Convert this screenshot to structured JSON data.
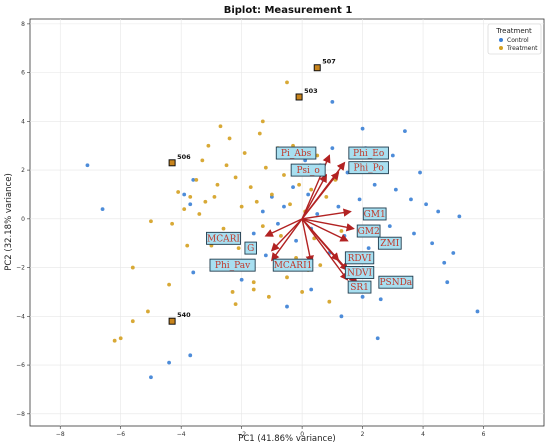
{
  "chart_data": {
    "type": "scatter",
    "title": "Biplot: Measurement 1",
    "xlabel": "PC1 (41.86% variance)",
    "ylabel": "PC2 (32.18% variance)",
    "xlim": [
      -9,
      8
    ],
    "ylim": [
      -8.5,
      8.2
    ],
    "x_ticks": [
      -8,
      -6,
      -4,
      -2,
      0,
      2,
      4,
      6
    ],
    "y_ticks": [
      -8,
      -6,
      -4,
      -2,
      0,
      2,
      4,
      6,
      8
    ],
    "x_tick_labels": [
      "−8",
      "−6",
      "−4",
      "−2",
      "0",
      "2",
      "4",
      "6"
    ],
    "y_tick_labels": [
      "−8",
      "−6",
      "−4",
      "−2",
      "0",
      "2",
      "4",
      "6",
      "8"
    ],
    "grid": true,
    "legend_title": "Treatment",
    "legend_position": "top-right",
    "series": [
      {
        "name": "Control",
        "color": "#3a7fd5",
        "points": [
          [
            -7.1,
            2.2
          ],
          [
            -6.6,
            0.4
          ],
          [
            -5.0,
            -6.5
          ],
          [
            -4.4,
            -5.9
          ],
          [
            -3.7,
            -5.6
          ],
          [
            -3.6,
            -2.2
          ],
          [
            -3.7,
            0.6
          ],
          [
            -3.9,
            1.0
          ],
          [
            -3.6,
            1.6
          ],
          [
            -2.0,
            -2.5
          ],
          [
            -1.6,
            -0.6
          ],
          [
            -1.3,
            0.3
          ],
          [
            -1.2,
            -1.5
          ],
          [
            -1.0,
            0.9
          ],
          [
            -0.8,
            -0.2
          ],
          [
            -0.6,
            0.5
          ],
          [
            -0.3,
            1.3
          ],
          [
            -0.2,
            -0.9
          ],
          [
            0.1,
            2.4
          ],
          [
            0.2,
            1.0
          ],
          [
            0.3,
            -0.4
          ],
          [
            0.5,
            0.2
          ],
          [
            0.7,
            1.6
          ],
          [
            0.9,
            -1.4
          ],
          [
            1.0,
            2.9
          ],
          [
            1.2,
            0.5
          ],
          [
            1.4,
            -0.7
          ],
          [
            1.5,
            1.9
          ],
          [
            1.7,
            -2.3
          ],
          [
            1.9,
            0.8
          ],
          [
            2.0,
            3.7
          ],
          [
            2.1,
            2.9
          ],
          [
            2.2,
            -1.2
          ],
          [
            2.4,
            1.4
          ],
          [
            2.6,
            -3.3
          ],
          [
            2.7,
            0.2
          ],
          [
            2.9,
            -0.3
          ],
          [
            3.0,
            2.6
          ],
          [
            3.1,
            1.2
          ],
          [
            3.2,
            -2.6
          ],
          [
            3.4,
            3.6
          ],
          [
            3.6,
            0.8
          ],
          [
            3.7,
            -0.6
          ],
          [
            3.9,
            1.9
          ],
          [
            4.1,
            0.6
          ],
          [
            4.3,
            -1.0
          ],
          [
            4.5,
            0.3
          ],
          [
            4.7,
            -1.8
          ],
          [
            4.8,
            -2.6
          ],
          [
            5.0,
            -1.4
          ],
          [
            5.2,
            0.1
          ],
          [
            5.8,
            -3.8
          ],
          [
            1.0,
            4.8
          ],
          [
            0.6,
            2.2
          ],
          [
            2.5,
            -4.9
          ],
          [
            0.3,
            -2.9
          ],
          [
            1.3,
            -4.0
          ],
          [
            2.0,
            -3.2
          ],
          [
            -0.5,
            -3.6
          ]
        ]
      },
      {
        "name": "Treatment",
        "color": "#d4a020",
        "points": [
          [
            -6.0,
            -4.9
          ],
          [
            -5.6,
            -4.2
          ],
          [
            -5.6,
            -2.0
          ],
          [
            -5.1,
            -3.8
          ],
          [
            -5.0,
            -0.1
          ],
          [
            -4.4,
            -2.7
          ],
          [
            -4.3,
            -0.2
          ],
          [
            -4.1,
            1.1
          ],
          [
            -3.9,
            0.4
          ],
          [
            -3.8,
            -1.1
          ],
          [
            -3.7,
            0.9
          ],
          [
            -3.5,
            1.6
          ],
          [
            -3.4,
            0.2
          ],
          [
            -3.3,
            2.4
          ],
          [
            -3.2,
            0.7
          ],
          [
            -3.1,
            3.0
          ],
          [
            -3.0,
            -1.1
          ],
          [
            -2.9,
            0.9
          ],
          [
            -2.8,
            1.4
          ],
          [
            -2.7,
            3.8
          ],
          [
            -2.6,
            -0.4
          ],
          [
            -2.5,
            2.2
          ],
          [
            -2.4,
            3.3
          ],
          [
            -2.3,
            -3.0
          ],
          [
            -2.2,
            1.7
          ],
          [
            -2.1,
            -1.2
          ],
          [
            -2.0,
            0.5
          ],
          [
            -1.9,
            2.7
          ],
          [
            -1.8,
            -1.8
          ],
          [
            -1.7,
            1.3
          ],
          [
            -1.6,
            -2.6
          ],
          [
            -1.5,
            0.7
          ],
          [
            -1.4,
            3.5
          ],
          [
            -1.3,
            -0.3
          ],
          [
            -1.2,
            2.1
          ],
          [
            -1.1,
            -3.2
          ],
          [
            -1.0,
            1.0
          ],
          [
            -0.9,
            -2.0
          ],
          [
            -0.8,
            2.9
          ],
          [
            -0.7,
            -0.7
          ],
          [
            -0.6,
            1.8
          ],
          [
            -0.5,
            -2.4
          ],
          [
            -0.4,
            0.6
          ],
          [
            -0.3,
            3.0
          ],
          [
            -0.2,
            -1.6
          ],
          [
            -0.1,
            1.4
          ],
          [
            0.0,
            -3.0
          ],
          [
            0.1,
            0.3
          ],
          [
            0.2,
            -2.1
          ],
          [
            0.3,
            1.2
          ],
          [
            0.4,
            -0.8
          ],
          [
            0.5,
            2.6
          ],
          [
            0.6,
            -1.9
          ],
          [
            0.8,
            0.9
          ],
          [
            0.9,
            -3.4
          ],
          [
            1.1,
            1.6
          ],
          [
            1.3,
            -0.5
          ],
          [
            1.6,
            -1.7
          ],
          [
            -0.5,
            5.6
          ],
          [
            -1.3,
            4.0
          ],
          [
            -6.2,
            -5.0
          ],
          [
            -2.2,
            -3.5
          ],
          [
            -1.6,
            -2.9
          ]
        ]
      }
    ],
    "outliers": [
      {
        "label": "507",
        "x": 0.5,
        "y": 6.2
      },
      {
        "label": "503",
        "x": -0.1,
        "y": 5.0
      },
      {
        "label": "506",
        "x": -4.3,
        "y": 2.3
      },
      {
        "label": "540",
        "x": -4.3,
        "y": -4.2
      }
    ],
    "loadings": [
      {
        "label": "Pi_Abs",
        "x": 0.9,
        "y": 2.6
      },
      {
        "label": "Phi_Eo",
        "x": 1.4,
        "y": 2.3
      },
      {
        "label": "Psi_o",
        "x": 0.8,
        "y": 1.8
      },
      {
        "label": "Phi_Po",
        "x": 1.2,
        "y": 1.9
      },
      {
        "label": "GM1",
        "x": 1.6,
        "y": 0.3
      },
      {
        "label": "GM2",
        "x": 1.7,
        "y": -0.4
      },
      {
        "label": "ZMI",
        "x": 1.5,
        "y": -0.9
      },
      {
        "label": "MCARI",
        "x": -1.2,
        "y": -0.7
      },
      {
        "label": "G",
        "x": -1.0,
        "y": -1.3
      },
      {
        "label": "Phi_Pav",
        "x": -1.0,
        "y": -1.7
      },
      {
        "label": "MCARI1",
        "x": 0.3,
        "y": -1.8
      },
      {
        "label": "RDVI",
        "x": 1.2,
        "y": -1.7
      },
      {
        "label": "NDVI",
        "x": 1.5,
        "y": -2.1
      },
      {
        "label": "SR1",
        "x": 1.5,
        "y": -2.5
      },
      {
        "label": "PSNDa",
        "x": 1.8,
        "y": -2.6
      }
    ],
    "loading_label_positions": [
      [
        -0.2,
        2.7
      ],
      [
        2.2,
        2.7
      ],
      [
        0.2,
        2.0
      ],
      [
        2.2,
        2.1
      ],
      [
        2.4,
        0.2
      ],
      [
        2.2,
        -0.5
      ],
      [
        2.9,
        -1.0
      ],
      [
        -2.6,
        -0.8
      ],
      [
        -1.7,
        -1.2
      ],
      [
        -2.3,
        -1.9
      ],
      [
        -0.3,
        -1.9
      ],
      [
        1.9,
        -1.6
      ],
      [
        1.9,
        -2.2
      ],
      [
        1.9,
        -2.8
      ],
      [
        3.1,
        -2.6
      ]
    ]
  }
}
